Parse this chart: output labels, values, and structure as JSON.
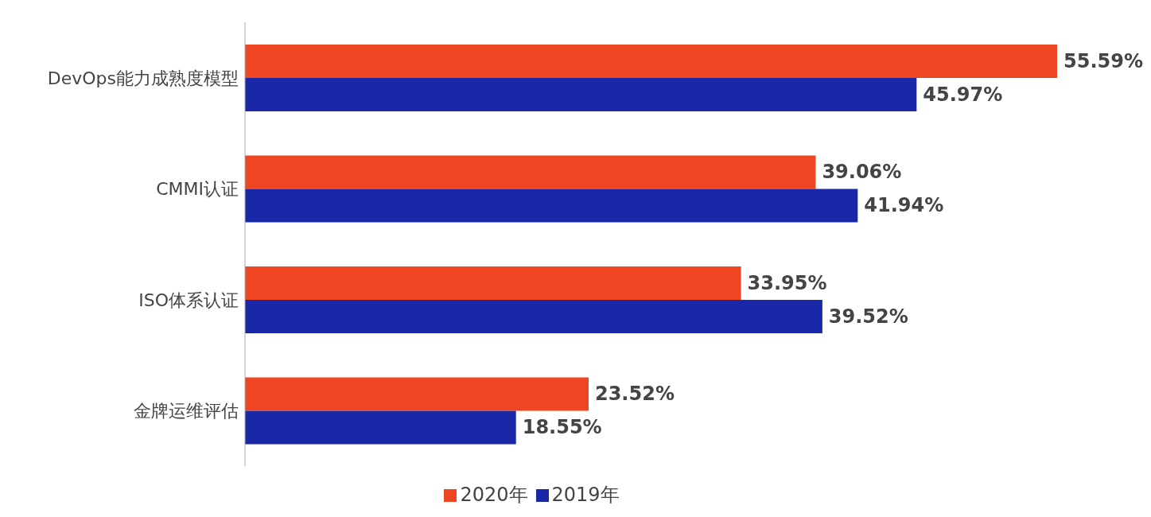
{
  "chart_data": {
    "type": "bar",
    "orientation": "horizontal",
    "categories": [
      "DevOps能力成熟度模型",
      "CMMI认证",
      "ISO体系认证",
      "金牌运维评估"
    ],
    "series": [
      {
        "name": "2020年",
        "color": "#ee4623",
        "values": [
          55.59,
          39.06,
          33.95,
          23.52
        ],
        "value_labels": [
          "55.59%",
          "39.06%",
          "33.95%",
          "23.52%"
        ]
      },
      {
        "name": "2019年",
        "color": "#1a28a8",
        "values": [
          45.97,
          41.94,
          39.52,
          18.55
        ],
        "value_labels": [
          "45.97%",
          "41.94%",
          "39.52%",
          "18.55%"
        ]
      }
    ],
    "legend": "bottom",
    "grid": false
  }
}
